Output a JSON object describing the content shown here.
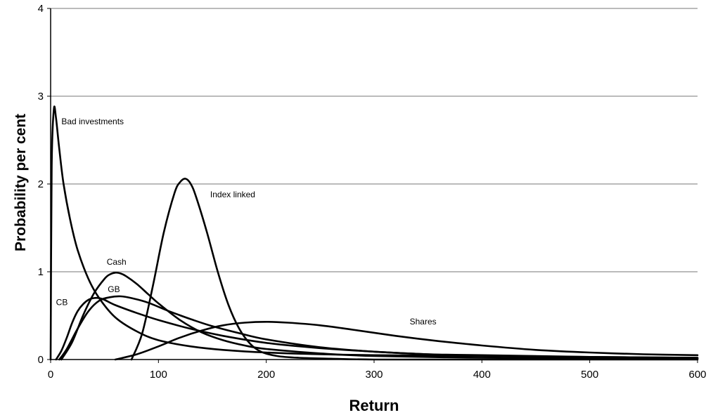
{
  "chart_data": {
    "type": "line",
    "xlabel": "Return",
    "ylabel": "Probability per cent",
    "xlim": [
      0,
      600
    ],
    "ylim": [
      0,
      4
    ],
    "x_ticks": [
      "0",
      "100",
      "200",
      "300",
      "400",
      "500",
      "600"
    ],
    "y_ticks": [
      "0",
      "1",
      "2",
      "3",
      "4"
    ],
    "grid": "horizontal",
    "legend": "none",
    "series": [
      {
        "name": "Bad investments",
        "x": [
          0,
          1,
          3,
          5,
          8,
          12,
          18,
          25,
          35,
          45,
          60,
          80,
          100,
          130,
          160,
          200,
          250,
          300,
          400,
          500,
          600
        ],
        "y": [
          0,
          2.2,
          2.85,
          2.75,
          2.4,
          2.0,
          1.6,
          1.25,
          0.92,
          0.7,
          0.48,
          0.32,
          0.22,
          0.15,
          0.11,
          0.08,
          0.06,
          0.05,
          0.04,
          0.03,
          0.02
        ]
      },
      {
        "name": "CB",
        "x": [
          5,
          10,
          15,
          20,
          25,
          30,
          35,
          40,
          45,
          50,
          60,
          80,
          100,
          130,
          160,
          200,
          250,
          300,
          350,
          400,
          500,
          600
        ],
        "y": [
          0,
          0.1,
          0.25,
          0.42,
          0.55,
          0.63,
          0.68,
          0.7,
          0.7,
          0.68,
          0.62,
          0.53,
          0.45,
          0.35,
          0.27,
          0.19,
          0.13,
          0.09,
          0.06,
          0.05,
          0.03,
          0.02
        ]
      },
      {
        "name": "GB",
        "x": [
          8,
          15,
          25,
          35,
          45,
          55,
          65,
          75,
          90,
          110,
          130,
          150,
          175,
          200,
          250,
          300,
          350,
          400,
          500,
          600
        ],
        "y": [
          0,
          0.12,
          0.35,
          0.55,
          0.67,
          0.71,
          0.72,
          0.7,
          0.65,
          0.55,
          0.46,
          0.38,
          0.3,
          0.23,
          0.14,
          0.09,
          0.06,
          0.04,
          0.02,
          0.01
        ]
      },
      {
        "name": "Cash",
        "x": [
          10,
          20,
          30,
          40,
          50,
          55,
          60,
          65,
          70,
          80,
          90,
          100,
          120,
          140,
          160,
          180,
          200,
          250,
          300,
          400,
          500,
          600
        ],
        "y": [
          0,
          0.2,
          0.5,
          0.75,
          0.92,
          0.97,
          0.99,
          0.98,
          0.95,
          0.86,
          0.75,
          0.64,
          0.45,
          0.31,
          0.22,
          0.16,
          0.12,
          0.07,
          0.04,
          0.02,
          0.01,
          0.01
        ]
      },
      {
        "name": "Index linked",
        "x": [
          75,
          85,
          95,
          105,
          115,
          120,
          125,
          130,
          135,
          145,
          155,
          165,
          175,
          185,
          195,
          210,
          230,
          260,
          300,
          400,
          600
        ],
        "y": [
          0,
          0.3,
          0.85,
          1.45,
          1.9,
          2.02,
          2.06,
          2.0,
          1.85,
          1.45,
          1.0,
          0.62,
          0.35,
          0.18,
          0.09,
          0.04,
          0.02,
          0.01,
          0,
          0,
          0
        ]
      },
      {
        "name": "Shares",
        "x": [
          60,
          80,
          100,
          120,
          140,
          160,
          180,
          200,
          220,
          250,
          280,
          320,
          360,
          400,
          450,
          500,
          550,
          600
        ],
        "y": [
          0,
          0.06,
          0.15,
          0.25,
          0.33,
          0.39,
          0.42,
          0.43,
          0.42,
          0.39,
          0.34,
          0.27,
          0.21,
          0.16,
          0.11,
          0.08,
          0.06,
          0.05
        ]
      }
    ],
    "annotations": [
      {
        "text": "Bad investments",
        "x": 10,
        "y": 2.68
      },
      {
        "text": "Index linked",
        "x": 148,
        "y": 1.85
      },
      {
        "text": "Cash",
        "x": 52,
        "y": 1.08
      },
      {
        "text": "GB",
        "x": 53,
        "y": 0.77
      },
      {
        "text": "CB",
        "x": 5,
        "y": 0.62
      },
      {
        "text": "Shares",
        "x": 333,
        "y": 0.4
      }
    ]
  }
}
